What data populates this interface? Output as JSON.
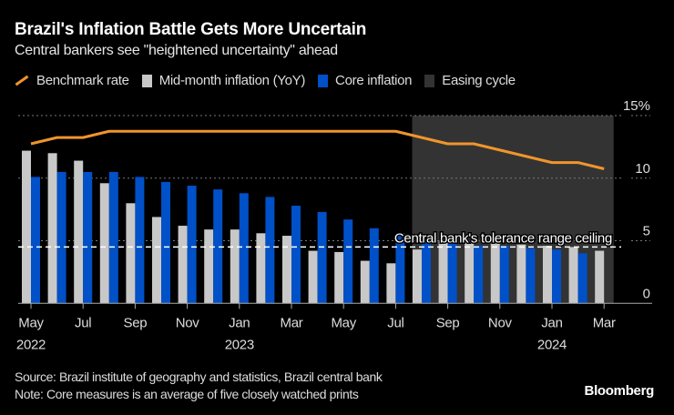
{
  "header": {
    "title": "Brazil's Inflation Battle Gets More Uncertain",
    "subtitle": "Central bankers see \"heightened uncertainty\" ahead"
  },
  "footer": {
    "source": "Source: Brazil institute of geography and statistics, Brazil central bank",
    "note": "Note: Core measures is an average of five closely watched prints",
    "logo": "Bloomberg"
  },
  "chart_data": {
    "type": "bar",
    "categories": [
      "2022-05",
      "2022-06",
      "2022-07",
      "2022-08",
      "2022-09",
      "2022-10",
      "2022-11",
      "2022-12",
      "2023-01",
      "2023-02",
      "2023-03",
      "2023-04",
      "2023-05",
      "2023-06",
      "2023-07",
      "2023-08",
      "2023-09",
      "2023-10",
      "2023-11",
      "2023-12",
      "2024-01",
      "2024-02",
      "2024-03"
    ],
    "x_tick_labels": [
      {
        "index": 0,
        "month": "May",
        "year": "2022"
      },
      {
        "index": 2,
        "month": "Jul",
        "year": ""
      },
      {
        "index": 4,
        "month": "Sep",
        "year": ""
      },
      {
        "index": 6,
        "month": "Nov",
        "year": ""
      },
      {
        "index": 8,
        "month": "Jan",
        "year": "2023"
      },
      {
        "index": 10,
        "month": "Mar",
        "year": ""
      },
      {
        "index": 12,
        "month": "May",
        "year": ""
      },
      {
        "index": 14,
        "month": "Jul",
        "year": ""
      },
      {
        "index": 16,
        "month": "Sep",
        "year": ""
      },
      {
        "index": 18,
        "month": "Nov",
        "year": ""
      },
      {
        "index": 20,
        "month": "Jan",
        "year": "2024"
      },
      {
        "index": 22,
        "month": "Mar",
        "year": ""
      }
    ],
    "y_ticks": [
      {
        "value": 0,
        "label": "0"
      },
      {
        "value": 5,
        "label": "5"
      },
      {
        "value": 10,
        "label": "10"
      },
      {
        "value": 15,
        "label": "15%"
      }
    ],
    "ylim": [
      0,
      15
    ],
    "grid": true,
    "legend_placement": "top",
    "series": [
      {
        "name": "Benchmark rate",
        "kind": "line",
        "color": "#f0952c",
        "values": [
          12.75,
          13.25,
          13.25,
          13.75,
          13.75,
          13.75,
          13.75,
          13.75,
          13.75,
          13.75,
          13.75,
          13.75,
          13.75,
          13.75,
          13.75,
          13.25,
          12.75,
          12.75,
          12.25,
          11.75,
          11.25,
          11.25,
          10.75
        ]
      },
      {
        "name": "Mid-month inflation (YoY)",
        "kind": "bar",
        "color": "#c8c8c8",
        "values": [
          12.2,
          12.0,
          11.4,
          9.6,
          8.0,
          6.9,
          6.2,
          5.9,
          5.9,
          5.6,
          5.4,
          4.2,
          4.1,
          3.4,
          3.2,
          4.3,
          5.0,
          4.9,
          4.9,
          4.7,
          4.6,
          4.5,
          4.2
        ]
      },
      {
        "name": "Core inflation",
        "kind": "bar",
        "color": "#0050c8",
        "values": [
          10.1,
          10.5,
          10.5,
          10.5,
          10.1,
          9.7,
          9.4,
          9.1,
          8.8,
          8.5,
          7.8,
          7.3,
          6.7,
          6.0,
          5.6,
          5.0,
          5.0,
          4.6,
          4.6,
          4.4,
          4.3,
          4.0,
          null
        ]
      },
      {
        "name": "Easing cycle",
        "kind": "shade",
        "color": "#333333",
        "start": "2023-08",
        "end": "2024-03"
      }
    ],
    "annotations": [
      {
        "text": "Central bank's tolerance range ceiling",
        "value": 4.5,
        "style": "dashed",
        "color": "#ffffff"
      }
    ]
  }
}
